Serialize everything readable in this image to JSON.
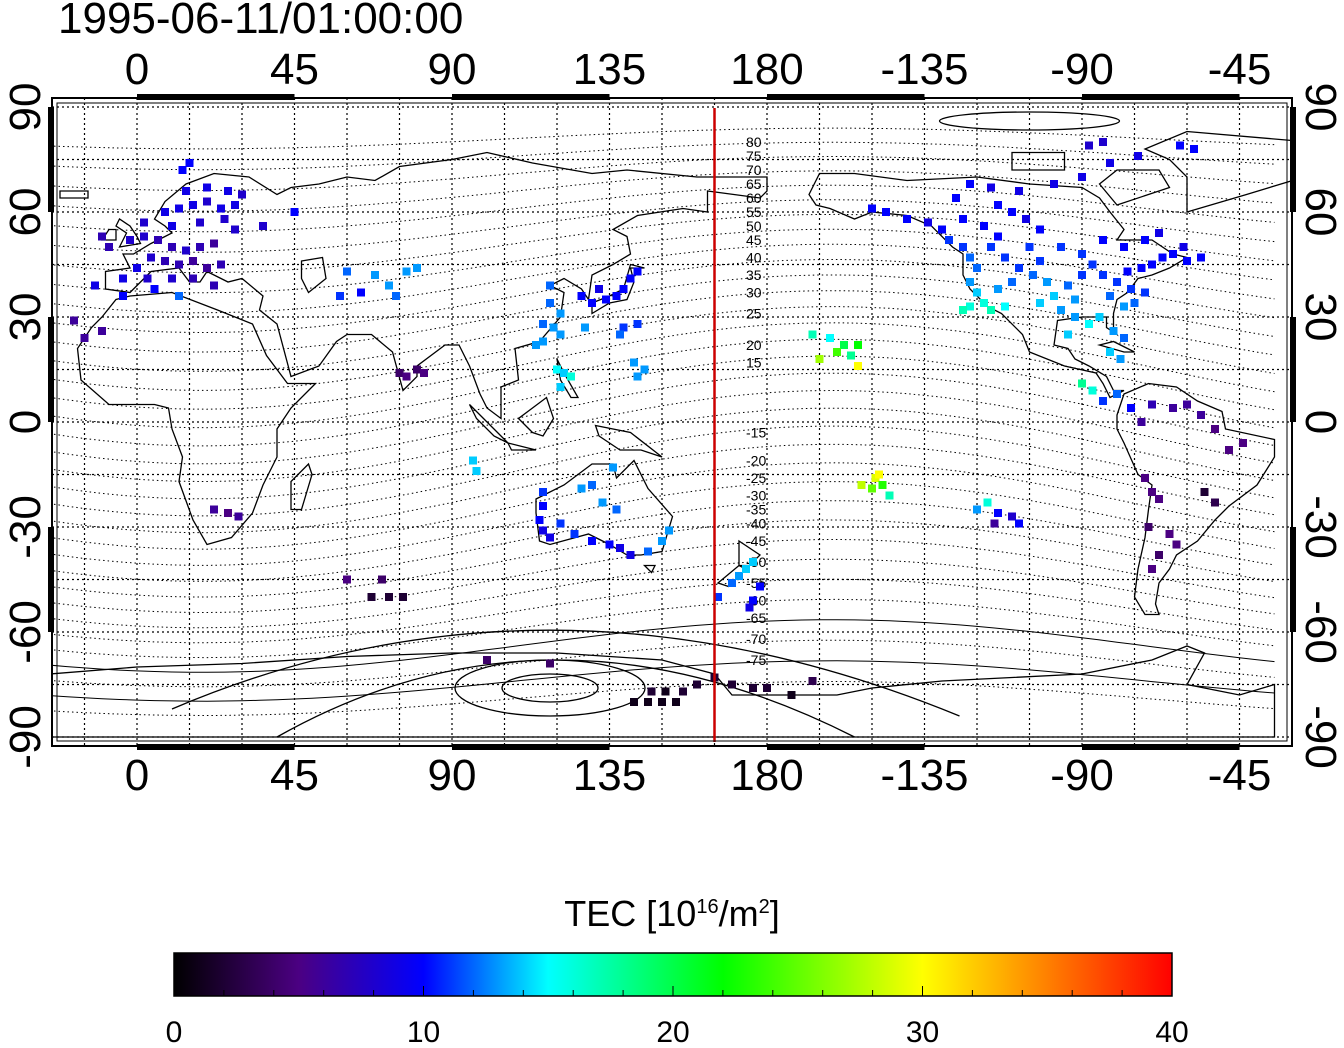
{
  "title": "1995-06-11/01:00:00",
  "map": {
    "projection": "cylindrical",
    "lon_min": -25,
    "lon_max": 325,
    "lat_min": -90,
    "lat_max": 90,
    "lon_ticks": [
      0,
      45,
      90,
      135,
      180,
      225,
      270,
      315
    ],
    "lon_tick_labels": [
      "0",
      "45",
      "90",
      "135",
      "180",
      "-135",
      "-90",
      "-45"
    ],
    "lat_ticks": [
      90,
      60,
      30,
      0,
      -30,
      -60,
      -90
    ],
    "lat_tick_labels": [
      "90",
      "60",
      "30",
      "0",
      "-30",
      "-60",
      "-90"
    ],
    "grid": "dotted every 15 degrees",
    "terminator_lon": 165,
    "terminator_color": "#cc0000"
  },
  "contours": {
    "labels": [
      "80",
      "75",
      "70",
      "65",
      "60",
      "55",
      "50",
      "45",
      "40",
      "35",
      "30",
      "25",
      "20",
      "15",
      "-15",
      "-20",
      "-25",
      "-30",
      "-35",
      "-40",
      "-45",
      "-50",
      "-55",
      "-60",
      "-65",
      "-70",
      "-75"
    ],
    "label_lats": [
      80,
      76,
      72,
      68,
      64,
      60,
      56,
      52,
      47,
      42,
      37,
      31,
      22,
      17,
      -3,
      -11,
      -16,
      -21,
      -25,
      -29,
      -34,
      -40,
      -46,
      -51,
      -56,
      -62,
      -68
    ]
  },
  "tec_points": [
    {
      "lon": -8,
      "lat": 50,
      "v": 7
    },
    {
      "lon": -2,
      "lat": 52,
      "v": 8
    },
    {
      "lon": 2,
      "lat": 53,
      "v": 8
    },
    {
      "lon": 6,
      "lat": 52,
      "v": 7
    },
    {
      "lon": 10,
      "lat": 50,
      "v": 7
    },
    {
      "lon": 14,
      "lat": 49,
      "v": 8
    },
    {
      "lon": 18,
      "lat": 50,
      "v": 7
    },
    {
      "lon": 22,
      "lat": 51,
      "v": 6
    },
    {
      "lon": 4,
      "lat": 47,
      "v": 8
    },
    {
      "lon": 8,
      "lat": 46,
      "v": 7
    },
    {
      "lon": 12,
      "lat": 45,
      "v": 7
    },
    {
      "lon": 16,
      "lat": 46,
      "v": 6
    },
    {
      "lon": 20,
      "lat": 44,
      "v": 6
    },
    {
      "lon": 24,
      "lat": 45,
      "v": 7
    },
    {
      "lon": 0,
      "lat": 44,
      "v": 9
    },
    {
      "lon": -4,
      "lat": 41,
      "v": 9
    },
    {
      "lon": 3,
      "lat": 41,
      "v": 8
    },
    {
      "lon": 10,
      "lat": 41,
      "v": 8
    },
    {
      "lon": 16,
      "lat": 41,
      "v": 7
    },
    {
      "lon": 22,
      "lat": 39,
      "v": 7
    },
    {
      "lon": 5,
      "lat": 38,
      "v": 10
    },
    {
      "lon": -12,
      "lat": 39,
      "v": 9
    },
    {
      "lon": -4,
      "lat": 36,
      "v": 10
    },
    {
      "lon": 12,
      "lat": 36,
      "v": 12
    },
    {
      "lon": 8,
      "lat": 60,
      "v": 9
    },
    {
      "lon": 12,
      "lat": 61,
      "v": 9
    },
    {
      "lon": 16,
      "lat": 62,
      "v": 9
    },
    {
      "lon": 20,
      "lat": 63,
      "v": 8
    },
    {
      "lon": 24,
      "lat": 61,
      "v": 9
    },
    {
      "lon": 28,
      "lat": 62,
      "v": 9
    },
    {
      "lon": 14,
      "lat": 66,
      "v": 9
    },
    {
      "lon": 20,
      "lat": 67,
      "v": 9
    },
    {
      "lon": 26,
      "lat": 66,
      "v": 9
    },
    {
      "lon": 30,
      "lat": 65,
      "v": 8
    },
    {
      "lon": 13,
      "lat": 72,
      "v": 10
    },
    {
      "lon": 15,
      "lat": 74,
      "v": 10
    },
    {
      "lon": 10,
      "lat": 56,
      "v": 9
    },
    {
      "lon": 18,
      "lat": 57,
      "v": 8
    },
    {
      "lon": 25,
      "lat": 58,
      "v": 8
    },
    {
      "lon": 28,
      "lat": 55,
      "v": 8
    },
    {
      "lon": 2,
      "lat": 57,
      "v": 8
    },
    {
      "lon": 36,
      "lat": 56,
      "v": 8
    },
    {
      "lon": 45,
      "lat": 60,
      "v": 10
    },
    {
      "lon": -10,
      "lat": 53,
      "v": 7
    },
    {
      "lon": -18,
      "lat": 29,
      "v": 6
    },
    {
      "lon": -15,
      "lat": 24,
      "v": 6
    },
    {
      "lon": -10,
      "lat": 26,
      "v": 6
    },
    {
      "lon": 60,
      "lat": 43,
      "v": 12
    },
    {
      "lon": 68,
      "lat": 42,
      "v": 13
    },
    {
      "lon": 72,
      "lat": 39,
      "v": 13
    },
    {
      "lon": 74,
      "lat": 36,
      "v": 12
    },
    {
      "lon": 64,
      "lat": 37,
      "v": 10
    },
    {
      "lon": 77,
      "lat": 43,
      "v": 13
    },
    {
      "lon": 80,
      "lat": 44,
      "v": 13
    },
    {
      "lon": 58,
      "lat": 36,
      "v": 11
    },
    {
      "lon": 75,
      "lat": 14,
      "v": 4
    },
    {
      "lon": 77,
      "lat": 13,
      "v": 5
    },
    {
      "lon": 80,
      "lat": 15,
      "v": 4
    },
    {
      "lon": 82,
      "lat": 14,
      "v": 5
    },
    {
      "lon": 118,
      "lat": 34,
      "v": 12
    },
    {
      "lon": 121,
      "lat": 31,
      "v": 13
    },
    {
      "lon": 119,
      "lat": 27,
      "v": 13
    },
    {
      "lon": 116,
      "lat": 28,
      "v": 12
    },
    {
      "lon": 121,
      "lat": 25,
      "v": 13
    },
    {
      "lon": 114,
      "lat": 22,
      "v": 13
    },
    {
      "lon": 116,
      "lat": 23,
      "v": 13
    },
    {
      "lon": 120,
      "lat": 15,
      "v": 15
    },
    {
      "lon": 122,
      "lat": 14,
      "v": 14
    },
    {
      "lon": 124,
      "lat": 13,
      "v": 16
    },
    {
      "lon": 121,
      "lat": 10,
      "v": 14
    },
    {
      "lon": 127,
      "lat": 36,
      "v": 10
    },
    {
      "lon": 130,
      "lat": 34,
      "v": 10
    },
    {
      "lon": 134,
      "lat": 35,
      "v": 10
    },
    {
      "lon": 137,
      "lat": 36,
      "v": 10
    },
    {
      "lon": 139,
      "lat": 38,
      "v": 10
    },
    {
      "lon": 141,
      "lat": 41,
      "v": 10
    },
    {
      "lon": 143,
      "lat": 43,
      "v": 10
    },
    {
      "lon": 132,
      "lat": 38,
      "v": 9
    },
    {
      "lon": 118,
      "lat": 39,
      "v": 12
    },
    {
      "lon": 128,
      "lat": 27,
      "v": 13
    },
    {
      "lon": 139,
      "lat": 27,
      "v": 11
    },
    {
      "lon": 143,
      "lat": 28,
      "v": 11
    },
    {
      "lon": 138,
      "lat": 25,
      "v": 12
    },
    {
      "lon": 142,
      "lat": 17,
      "v": 13
    },
    {
      "lon": 145,
      "lat": 15,
      "v": 13
    },
    {
      "lon": 143,
      "lat": 13,
      "v": 13
    },
    {
      "lon": 96,
      "lat": -11,
      "v": 14
    },
    {
      "lon": 97,
      "lat": -14,
      "v": 14
    },
    {
      "lon": 116,
      "lat": -20,
      "v": 11
    },
    {
      "lon": 116,
      "lat": -24,
      "v": 10
    },
    {
      "lon": 115,
      "lat": -28,
      "v": 10
    },
    {
      "lon": 116,
      "lat": -31,
      "v": 9
    },
    {
      "lon": 118,
      "lat": -33,
      "v": 9
    },
    {
      "lon": 121,
      "lat": -29,
      "v": 11
    },
    {
      "lon": 125,
      "lat": -32,
      "v": 11
    },
    {
      "lon": 130,
      "lat": -34,
      "v": 10
    },
    {
      "lon": 135,
      "lat": -35,
      "v": 10
    },
    {
      "lon": 138,
      "lat": -36,
      "v": 9
    },
    {
      "lon": 141,
      "lat": -38,
      "v": 9
    },
    {
      "lon": 146,
      "lat": -37,
      "v": 12
    },
    {
      "lon": 150,
      "lat": -34,
      "v": 13
    },
    {
      "lon": 152,
      "lat": -31,
      "v": 13
    },
    {
      "lon": 133,
      "lat": -23,
      "v": 13
    },
    {
      "lon": 137,
      "lat": -25,
      "v": 12
    },
    {
      "lon": 127,
      "lat": -19,
      "v": 13
    },
    {
      "lon": 130,
      "lat": -18,
      "v": 12
    },
    {
      "lon": 136,
      "lat": -13,
      "v": 13
    },
    {
      "lon": 170,
      "lat": -46,
      "v": 12
    },
    {
      "lon": 172,
      "lat": -44,
      "v": 13
    },
    {
      "lon": 174,
      "lat": -42,
      "v": 14
    },
    {
      "lon": 176,
      "lat": -40,
      "v": 14
    },
    {
      "lon": 178,
      "lat": -47,
      "v": 10
    },
    {
      "lon": 176,
      "lat": -51,
      "v": 10
    },
    {
      "lon": 175,
      "lat": -53,
      "v": 9
    },
    {
      "lon": 166,
      "lat": -50,
      "v": 11
    },
    {
      "lon": 22,
      "lat": -25,
      "v": 6
    },
    {
      "lon": 26,
      "lat": -26,
      "v": 5
    },
    {
      "lon": 29,
      "lat": -27,
      "v": 6
    },
    {
      "lon": 60,
      "lat": -45,
      "v": 5
    },
    {
      "lon": 70,
      "lat": -45,
      "v": 4
    },
    {
      "lon": 67,
      "lat": -50,
      "v": 2
    },
    {
      "lon": 72,
      "lat": -50,
      "v": 2
    },
    {
      "lon": 76,
      "lat": -50,
      "v": 2
    },
    {
      "lon": 100,
      "lat": -68,
      "v": 4
    },
    {
      "lon": 118,
      "lat": -69,
      "v": 4
    },
    {
      "lon": 142,
      "lat": -80,
      "v": 1
    },
    {
      "lon": 146,
      "lat": -80,
      "v": 1
    },
    {
      "lon": 150,
      "lat": -80,
      "v": 1
    },
    {
      "lon": 154,
      "lat": -80,
      "v": 1
    },
    {
      "lon": 147,
      "lat": -77,
      "v": 2
    },
    {
      "lon": 151,
      "lat": -77,
      "v": 1
    },
    {
      "lon": 156,
      "lat": -77,
      "v": 2
    },
    {
      "lon": 160,
      "lat": -75,
      "v": 2
    },
    {
      "lon": 165,
      "lat": -73,
      "v": 2
    },
    {
      "lon": 170,
      "lat": -75,
      "v": 2
    },
    {
      "lon": 176,
      "lat": -76,
      "v": 2
    },
    {
      "lon": 180,
      "lat": -76,
      "v": 2
    },
    {
      "lon": 187,
      "lat": -78,
      "v": 1
    },
    {
      "lon": 193,
      "lat": -74,
      "v": 3
    },
    {
      "lon": 193,
      "lat": 25,
      "v": 17
    },
    {
      "lon": 198,
      "lat": 24,
      "v": 15
    },
    {
      "lon": 202,
      "lat": 22,
      "v": 20
    },
    {
      "lon": 206,
      "lat": 22,
      "v": 22
    },
    {
      "lon": 195,
      "lat": 18,
      "v": 27
    },
    {
      "lon": 200,
      "lat": 20,
      "v": 24
    },
    {
      "lon": 204,
      "lat": 19,
      "v": 18
    },
    {
      "lon": 206,
      "lat": 16,
      "v": 30
    },
    {
      "lon": 211,
      "lat": -16,
      "v": 29
    },
    {
      "lon": 213,
      "lat": -18,
      "v": 23
    },
    {
      "lon": 210,
      "lat": -19,
      "v": 25
    },
    {
      "lon": 215,
      "lat": -21,
      "v": 17
    },
    {
      "lon": 207,
      "lat": -18,
      "v": 28
    },
    {
      "lon": 212,
      "lat": -15,
      "v": 30
    },
    {
      "lon": 240,
      "lat": -25,
      "v": 13
    },
    {
      "lon": 243,
      "lat": -23,
      "v": 16
    },
    {
      "lon": 246,
      "lat": -26,
      "v": 10
    },
    {
      "lon": 250,
      "lat": -27,
      "v": 8
    },
    {
      "lon": 245,
      "lat": -29,
      "v": 6
    },
    {
      "lon": 252,
      "lat": -29,
      "v": 10
    },
    {
      "lon": 210,
      "lat": 61,
      "v": 10
    },
    {
      "lon": 214,
      "lat": 60,
      "v": 10
    },
    {
      "lon": 220,
      "lat": 58,
      "v": 10
    },
    {
      "lon": 226,
      "lat": 57,
      "v": 9
    },
    {
      "lon": 230,
      "lat": 55,
      "v": 10
    },
    {
      "lon": 232,
      "lat": 52,
      "v": 11
    },
    {
      "lon": 236,
      "lat": 50,
      "v": 11
    },
    {
      "lon": 238,
      "lat": 47,
      "v": 12
    },
    {
      "lon": 240,
      "lat": 44,
      "v": 12
    },
    {
      "lon": 238,
      "lat": 40,
      "v": 13
    },
    {
      "lon": 240,
      "lat": 37,
      "v": 14
    },
    {
      "lon": 242,
      "lat": 34,
      "v": 16
    },
    {
      "lon": 244,
      "lat": 32,
      "v": 17
    },
    {
      "lon": 238,
      "lat": 33,
      "v": 16
    },
    {
      "lon": 236,
      "lat": 32,
      "v": 17
    },
    {
      "lon": 248,
      "lat": 33,
      "v": 15
    },
    {
      "lon": 246,
      "lat": 38,
      "v": 13
    },
    {
      "lon": 250,
      "lat": 40,
      "v": 12
    },
    {
      "lon": 252,
      "lat": 44,
      "v": 11
    },
    {
      "lon": 248,
      "lat": 47,
      "v": 11
    },
    {
      "lon": 244,
      "lat": 50,
      "v": 11
    },
    {
      "lon": 246,
      "lat": 53,
      "v": 10
    },
    {
      "lon": 242,
      "lat": 56,
      "v": 10
    },
    {
      "lon": 236,
      "lat": 58,
      "v": 10
    },
    {
      "lon": 246,
      "lat": 62,
      "v": 10
    },
    {
      "lon": 250,
      "lat": 60,
      "v": 10
    },
    {
      "lon": 254,
      "lat": 58,
      "v": 9
    },
    {
      "lon": 258,
      "lat": 55,
      "v": 10
    },
    {
      "lon": 255,
      "lat": 50,
      "v": 11
    },
    {
      "lon": 258,
      "lat": 46,
      "v": 11
    },
    {
      "lon": 256,
      "lat": 42,
      "v": 12
    },
    {
      "lon": 260,
      "lat": 40,
      "v": 13
    },
    {
      "lon": 262,
      "lat": 36,
      "v": 14
    },
    {
      "lon": 258,
      "lat": 34,
      "v": 14
    },
    {
      "lon": 264,
      "lat": 32,
      "v": 13
    },
    {
      "lon": 268,
      "lat": 35,
      "v": 13
    },
    {
      "lon": 266,
      "lat": 39,
      "v": 12
    },
    {
      "lon": 270,
      "lat": 42,
      "v": 11
    },
    {
      "lon": 273,
      "lat": 45,
      "v": 11
    },
    {
      "lon": 276,
      "lat": 42,
      "v": 11
    },
    {
      "lon": 280,
      "lat": 40,
      "v": 11
    },
    {
      "lon": 283,
      "lat": 43,
      "v": 10
    },
    {
      "lon": 287,
      "lat": 44,
      "v": 10
    },
    {
      "lon": 290,
      "lat": 45,
      "v": 10
    },
    {
      "lon": 293,
      "lat": 47,
      "v": 10
    },
    {
      "lon": 296,
      "lat": 48,
      "v": 10
    },
    {
      "lon": 299,
      "lat": 50,
      "v": 9
    },
    {
      "lon": 278,
      "lat": 36,
      "v": 12
    },
    {
      "lon": 282,
      "lat": 33,
      "v": 13
    },
    {
      "lon": 285,
      "lat": 34,
      "v": 12
    },
    {
      "lon": 288,
      "lat": 37,
      "v": 11
    },
    {
      "lon": 284,
      "lat": 38,
      "v": 11
    },
    {
      "lon": 275,
      "lat": 30,
      "v": 14
    },
    {
      "lon": 272,
      "lat": 28,
      "v": 15
    },
    {
      "lon": 279,
      "lat": 26,
      "v": 13
    },
    {
      "lon": 282,
      "lat": 24,
      "v": 12
    },
    {
      "lon": 270,
      "lat": 48,
      "v": 11
    },
    {
      "lon": 264,
      "lat": 50,
      "v": 11
    },
    {
      "lon": 282,
      "lat": 50,
      "v": 10
    },
    {
      "lon": 288,
      "lat": 52,
      "v": 10
    },
    {
      "lon": 276,
      "lat": 52,
      "v": 10
    },
    {
      "lon": 292,
      "lat": 54,
      "v": 9
    },
    {
      "lon": 300,
      "lat": 46,
      "v": 10
    },
    {
      "lon": 304,
      "lat": 47,
      "v": 10
    },
    {
      "lon": 234,
      "lat": 64,
      "v": 10
    },
    {
      "lon": 238,
      "lat": 68,
      "v": 10
    },
    {
      "lon": 244,
      "lat": 67,
      "v": 9
    },
    {
      "lon": 252,
      "lat": 66,
      "v": 9
    },
    {
      "lon": 262,
      "lat": 68,
      "v": 9
    },
    {
      "lon": 270,
      "lat": 70,
      "v": 9
    },
    {
      "lon": 278,
      "lat": 74,
      "v": 9
    },
    {
      "lon": 286,
      "lat": 76,
      "v": 9
    },
    {
      "lon": 272,
      "lat": 79,
      "v": 8
    },
    {
      "lon": 276,
      "lat": 80,
      "v": 8
    },
    {
      "lon": 298,
      "lat": 79,
      "v": 10
    },
    {
      "lon": 302,
      "lat": 78,
      "v": 10
    },
    {
      "lon": 268,
      "lat": 30,
      "v": 13
    },
    {
      "lon": 266,
      "lat": 25,
      "v": 14
    },
    {
      "lon": 278,
      "lat": 20,
      "v": 14
    },
    {
      "lon": 281,
      "lat": 18,
      "v": 13
    },
    {
      "lon": 270,
      "lat": 11,
      "v": 18
    },
    {
      "lon": 273,
      "lat": 9,
      "v": 16
    },
    {
      "lon": 276,
      "lat": 6,
      "v": 11
    },
    {
      "lon": 280,
      "lat": 8,
      "v": 12
    },
    {
      "lon": 284,
      "lat": 4,
      "v": 10
    },
    {
      "lon": 290,
      "lat": 5,
      "v": 7
    },
    {
      "lon": 287,
      "lat": 0,
      "v": 6
    },
    {
      "lon": 296,
      "lat": 4,
      "v": 6
    },
    {
      "lon": 300,
      "lat": 5,
      "v": 6
    },
    {
      "lon": 304,
      "lat": 2,
      "v": 6
    },
    {
      "lon": 308,
      "lat": -2,
      "v": 5
    },
    {
      "lon": 312,
      "lat": -8,
      "v": 5
    },
    {
      "lon": 316,
      "lat": -6,
      "v": 5
    },
    {
      "lon": 305,
      "lat": -20,
      "v": 2
    },
    {
      "lon": 308,
      "lat": -23,
      "v": 3
    },
    {
      "lon": 288,
      "lat": -16,
      "v": 5
    },
    {
      "lon": 290,
      "lat": -20,
      "v": 5
    },
    {
      "lon": 292,
      "lat": -22,
      "v": 5
    },
    {
      "lon": 289,
      "lat": -30,
      "v": 4
    },
    {
      "lon": 295,
      "lat": -32,
      "v": 5
    },
    {
      "lon": 297,
      "lat": -35,
      "v": 5
    },
    {
      "lon": 292,
      "lat": -38,
      "v": 4
    },
    {
      "lon": 290,
      "lat": -42,
      "v": 5
    }
  ],
  "colorbar": {
    "title_main": "TEC  [10",
    "title_sup1": "16",
    "title_mid": "/m",
    "title_sup2": "2",
    "title_end": "]",
    "min": 0,
    "max": 40,
    "tick_labels": [
      "0",
      "10",
      "20",
      "30",
      "40"
    ],
    "colors": [
      "#000000",
      "#4b0082",
      "#0000ff",
      "#00ffff",
      "#00ff00",
      "#ffff00",
      "#ff8000",
      "#ff0000"
    ]
  }
}
